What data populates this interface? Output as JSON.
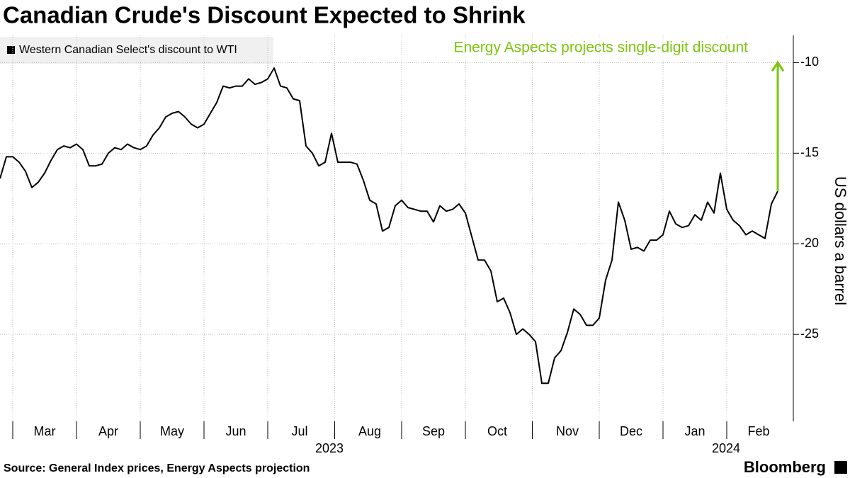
{
  "chart_data": {
    "type": "line",
    "title": "Canadian Crude's Discount Expected to Shrink",
    "source": "Source: General Index prices, Energy Aspects projection",
    "brand": "Bloomberg",
    "y_axis_label": "US dollars a barrel",
    "x_year_labels": [
      "2023",
      "2024"
    ],
    "annotation": {
      "text": "Energy Aspects projects single-digit discount",
      "value": -10,
      "color": "#7ac70c"
    },
    "categories": [
      null,
      null,
      null,
      null,
      null,
      null,
      null,
      "Mar",
      null,
      null,
      null,
      null,
      null,
      null,
      null,
      null,
      null,
      "Apr",
      null,
      null,
      null,
      null,
      null,
      null,
      null,
      null,
      null,
      "May",
      null,
      null,
      null,
      null,
      null,
      null,
      null,
      null,
      null,
      "Jun",
      null,
      null,
      null,
      null,
      null,
      null,
      null,
      null,
      null,
      "Jul",
      null,
      null,
      null,
      null,
      null,
      null,
      null,
      null,
      null,
      null,
      "Aug",
      null,
      null,
      null,
      null,
      null,
      null,
      null,
      null,
      null,
      "Sep",
      null,
      null,
      null,
      null,
      null,
      null,
      null,
      null,
      null,
      "Oct",
      null,
      null,
      null,
      null,
      null,
      null,
      null,
      null,
      null,
      null,
      "Nov",
      null,
      null,
      null,
      null,
      null,
      null,
      null,
      null,
      null,
      "Dec",
      null,
      null,
      null,
      null,
      null,
      null,
      null,
      null,
      null,
      "Jan",
      null,
      null,
      null,
      null,
      null,
      null,
      null,
      null,
      null,
      "Feb",
      null,
      null,
      null
    ],
    "series": [
      {
        "name": "Western Canadian Select's discount to WTI",
        "color": "#000000",
        "values": [
          -16.4,
          -15.2,
          -15.2,
          -15.5,
          -16.0,
          -16.9,
          -16.6,
          -16.1,
          -15.4,
          -14.8,
          -14.6,
          -14.7,
          -14.5,
          -14.8,
          -15.7,
          -15.7,
          -15.6,
          -15.0,
          -14.7,
          -14.8,
          -14.5,
          -14.7,
          -14.8,
          -14.6,
          -14.0,
          -13.6,
          -13.0,
          -12.8,
          -12.7,
          -13.0,
          -13.4,
          -13.6,
          -13.4,
          -12.8,
          -12.2,
          -11.3,
          -11.4,
          -11.3,
          -11.3,
          -10.9,
          -11.2,
          -11.1,
          -10.9,
          -10.3,
          -11.3,
          -11.4,
          -12.0,
          -12.1,
          -14.6,
          -15.0,
          -15.7,
          -15.5,
          -13.9,
          -15.5,
          -15.5,
          -15.5,
          -15.6,
          -16.5,
          -17.6,
          -17.8,
          -19.3,
          -19.1,
          -17.9,
          -17.6,
          -18.0,
          -18.1,
          -18.2,
          -18.2,
          -18.8,
          -17.9,
          -18.2,
          -18.1,
          -17.8,
          -18.3,
          -19.6,
          -20.9,
          -20.9,
          -21.5,
          -23.2,
          -23.0,
          -23.8,
          -25.0,
          -24.7,
          -25.0,
          -25.4,
          -27.7,
          -27.7,
          -26.3,
          -25.9,
          -24.9,
          -23.6,
          -23.9,
          -24.5,
          -24.5,
          -24.1,
          -22.0,
          -20.9,
          -17.7,
          -18.7,
          -20.3,
          -20.2,
          -20.4,
          -19.8,
          -19.8,
          -19.5,
          -18.2,
          -18.9,
          -19.1,
          -19.0,
          -18.4,
          -18.7,
          -17.7,
          -18.3,
          -16.1,
          -18.1,
          -18.7,
          -19.0,
          -19.5,
          -19.3,
          -19.5,
          -19.7,
          -17.8,
          -17.1
        ]
      }
    ],
    "ylim": [
      -29.8,
      -8.5
    ],
    "yticks": [
      -10,
      -15,
      -20,
      -25
    ],
    "grid": true,
    "legend": "top-left"
  }
}
